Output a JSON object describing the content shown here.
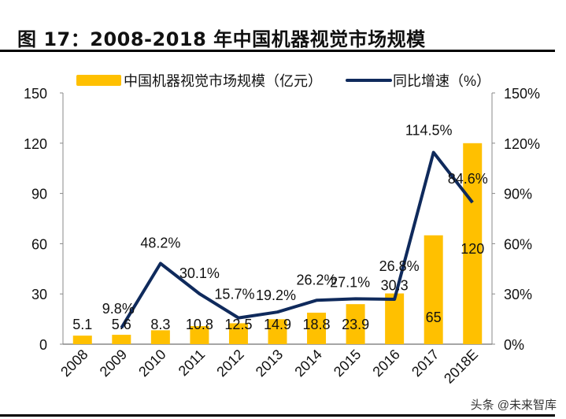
{
  "title": "图 17：2008-2018 年中国机器视觉市场规模",
  "watermark": "头条 @未来智库",
  "colors": {
    "bar": "#FFC000",
    "line": "#0F2A5C"
  },
  "chart_data": {
    "type": "bar+line",
    "categories": [
      "2008",
      "2009",
      "2010",
      "2011",
      "2012",
      "2013",
      "2014",
      "2015",
      "2016",
      "2017",
      "2018E"
    ],
    "series": [
      {
        "name": "中国机器视觉市场规模（亿元）",
        "type": "bar",
        "axis": "left",
        "values": [
          5.1,
          5.6,
          8.3,
          10.8,
          12.5,
          14.9,
          18.8,
          23.9,
          30.3,
          65,
          120
        ],
        "labels": [
          "5.1",
          "5.6",
          "8.3",
          "10.8",
          "12.5",
          "14.9",
          "18.8",
          "23.9",
          "30.3",
          "65",
          "120"
        ]
      },
      {
        "name": "同比增速（%）",
        "type": "line",
        "axis": "right",
        "values": [
          null,
          9.8,
          48.2,
          30.1,
          15.7,
          19.2,
          26.2,
          27.1,
          26.8,
          114.5,
          84.6
        ],
        "labels": [
          null,
          "9.8%",
          "48.2%",
          "30.1%",
          "15.7%",
          "19.2%",
          "26.2%",
          "27.1%",
          "26.8%",
          "114.5%",
          "84.6%"
        ]
      }
    ],
    "y_left": {
      "range": [
        0,
        150
      ],
      "ticks": [
        "0",
        "30",
        "60",
        "90",
        "120",
        "150"
      ]
    },
    "y_right": {
      "range": [
        0,
        150
      ],
      "ticks": [
        "0%",
        "30%",
        "60%",
        "90%",
        "120%",
        "150%"
      ]
    },
    "legend": "top",
    "grid": false
  }
}
